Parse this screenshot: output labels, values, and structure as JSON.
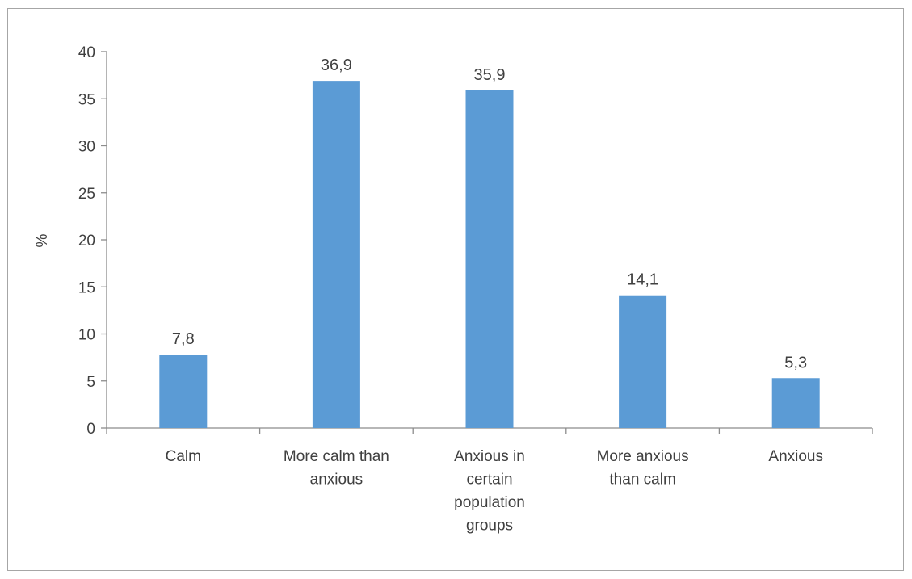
{
  "chart_data": {
    "type": "bar",
    "title": "",
    "xlabel": "",
    "ylabel": "%",
    "ylim": [
      0,
      40
    ],
    "yticks": [
      "0",
      "5",
      "10",
      "15",
      "20",
      "25",
      "30",
      "35",
      "40"
    ],
    "grid": false,
    "legend": "none",
    "bar_color": "#5b9bd5",
    "categories": [
      [
        "Calm"
      ],
      [
        "More calm than",
        "anxious"
      ],
      [
        "Anxious in",
        "certain",
        "population",
        "groups"
      ],
      [
        "More anxious",
        "than calm"
      ],
      [
        "Anxious"
      ]
    ],
    "values": [
      7.8,
      36.9,
      35.9,
      14.1,
      5.3
    ],
    "value_labels": [
      "7,8",
      "36,9",
      "35,9",
      "14,1",
      "5,3"
    ]
  }
}
